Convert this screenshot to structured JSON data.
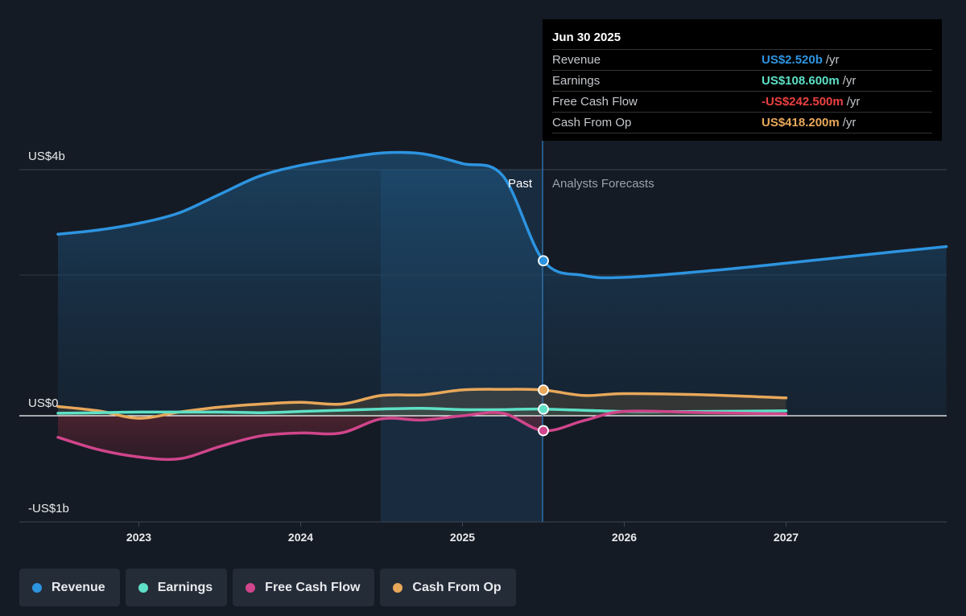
{
  "chart_data": {
    "type": "line",
    "y_axis": {
      "tick_labels": [
        "US$4b",
        "US$0",
        "-US$1b"
      ],
      "ylim": [
        -1,
        4
      ]
    },
    "x_axis": {
      "tick_labels": [
        "2023",
        "2024",
        "2025",
        "2026",
        "2027"
      ]
    },
    "region_labels": {
      "past": "Past",
      "forecast": "Analysts Forecasts"
    },
    "series": [
      {
        "name": "Revenue",
        "color": "#2d94e0",
        "unit": "US$b",
        "points": [
          [
            2022.5,
            2.95
          ],
          [
            2022.75,
            3.02
          ],
          [
            2023.0,
            3.13
          ],
          [
            2023.25,
            3.3
          ],
          [
            2023.5,
            3.6
          ],
          [
            2023.75,
            3.9
          ],
          [
            2024.0,
            4.07
          ],
          [
            2024.25,
            4.18
          ],
          [
            2024.5,
            4.27
          ],
          [
            2024.75,
            4.26
          ],
          [
            2025.0,
            4.1
          ],
          [
            2025.25,
            3.9
          ],
          [
            2025.5,
            2.52
          ],
          [
            2025.75,
            2.28
          ],
          [
            2026.0,
            2.25
          ],
          [
            2026.5,
            2.35
          ],
          [
            2027.0,
            2.48
          ],
          [
            2027.5,
            2.62
          ],
          [
            2027.99,
            2.75
          ]
        ]
      },
      {
        "name": "Earnings",
        "color": "#5ee0c6",
        "unit": "US$b",
        "points": [
          [
            2022.5,
            0.04
          ],
          [
            2022.75,
            0.05
          ],
          [
            2023.0,
            0.06
          ],
          [
            2023.25,
            0.06
          ],
          [
            2023.5,
            0.06
          ],
          [
            2023.75,
            0.05
          ],
          [
            2024.0,
            0.07
          ],
          [
            2024.25,
            0.09
          ],
          [
            2024.5,
            0.11
          ],
          [
            2024.75,
            0.12
          ],
          [
            2025.0,
            0.1
          ],
          [
            2025.25,
            0.1
          ],
          [
            2025.5,
            0.1086
          ],
          [
            2026.0,
            0.07
          ],
          [
            2026.5,
            0.07
          ],
          [
            2027.0,
            0.08
          ]
        ]
      },
      {
        "name": "Free Cash Flow",
        "color": "#d0458b",
        "unit": "US$b",
        "points": [
          [
            2022.5,
            -0.35
          ],
          [
            2022.75,
            -0.55
          ],
          [
            2023.0,
            -0.67
          ],
          [
            2023.25,
            -0.7
          ],
          [
            2023.5,
            -0.5
          ],
          [
            2023.75,
            -0.33
          ],
          [
            2024.0,
            -0.28
          ],
          [
            2024.25,
            -0.28
          ],
          [
            2024.5,
            -0.05
          ],
          [
            2024.75,
            -0.07
          ],
          [
            2025.0,
            0.0
          ],
          [
            2025.25,
            0.04
          ],
          [
            2025.5,
            -0.2425
          ],
          [
            2025.75,
            -0.08
          ],
          [
            2026.0,
            0.07
          ],
          [
            2026.5,
            0.05
          ],
          [
            2027.0,
            0.03
          ]
        ]
      },
      {
        "name": "Cash From Op",
        "color": "#e8a85a",
        "unit": "US$b",
        "points": [
          [
            2022.5,
            0.15
          ],
          [
            2022.75,
            0.08
          ],
          [
            2023.0,
            -0.04
          ],
          [
            2023.25,
            0.06
          ],
          [
            2023.5,
            0.14
          ],
          [
            2023.75,
            0.19
          ],
          [
            2024.0,
            0.22
          ],
          [
            2024.25,
            0.19
          ],
          [
            2024.5,
            0.33
          ],
          [
            2024.75,
            0.34
          ],
          [
            2025.0,
            0.42
          ],
          [
            2025.25,
            0.43
          ],
          [
            2025.5,
            0.4182
          ],
          [
            2025.75,
            0.33
          ],
          [
            2026.0,
            0.36
          ],
          [
            2026.5,
            0.34
          ],
          [
            2027.0,
            0.29
          ]
        ]
      }
    ]
  },
  "tooltip": {
    "date": "Jun 30 2025",
    "rows": [
      {
        "name": "Revenue",
        "value": "US$2.520b",
        "unit": "/yr",
        "color": "#2d94e0"
      },
      {
        "name": "Earnings",
        "value": "US$108.600m",
        "unit": "/yr",
        "color": "#5ee0c6"
      },
      {
        "name": "Free Cash Flow",
        "value": "-US$242.500m",
        "unit": "/yr",
        "color": "#ec4040"
      },
      {
        "name": "Cash From Op",
        "value": "US$418.200m",
        "unit": "/yr",
        "color": "#e8a85a"
      }
    ]
  },
  "legend": [
    {
      "label": "Revenue",
      "color": "#2d94e0"
    },
    {
      "label": "Earnings",
      "color": "#5ee0c6"
    },
    {
      "label": "Free Cash Flow",
      "color": "#d0458b"
    },
    {
      "label": "Cash From Op",
      "color": "#e8a85a"
    }
  ]
}
